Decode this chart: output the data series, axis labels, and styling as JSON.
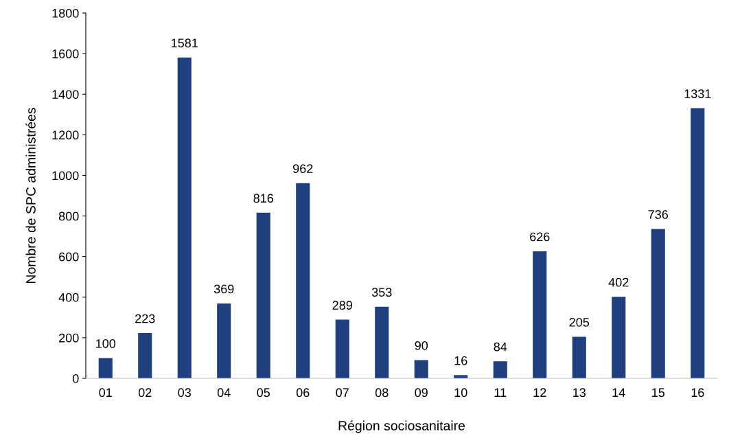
{
  "chart_data": {
    "type": "bar",
    "xlabel": "Région sociosanitaire",
    "ylabel": "Nombre de SPC administrées",
    "categories": [
      "01",
      "02",
      "03",
      "04",
      "05",
      "06",
      "07",
      "08",
      "09",
      "10",
      "11",
      "12",
      "13",
      "14",
      "15",
      "16"
    ],
    "values": [
      100,
      223,
      1581,
      369,
      816,
      962,
      289,
      353,
      90,
      16,
      84,
      626,
      205,
      402,
      736,
      1331
    ],
    "color": "#1f3f7f",
    "ylim": [
      0,
      1800
    ],
    "yticks": [
      0,
      200,
      400,
      600,
      800,
      1000,
      1200,
      1400,
      1600,
      1800
    ],
    "grid": false,
    "data_labels": true
  }
}
